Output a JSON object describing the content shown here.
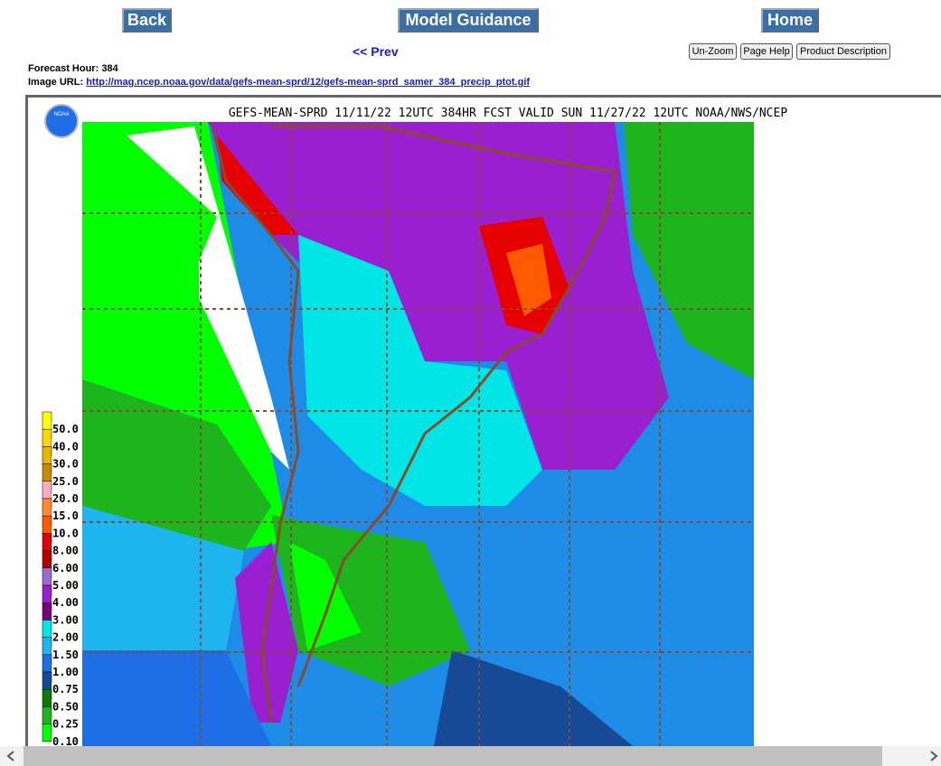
{
  "nav": {
    "back": "Back",
    "model_guidance": "Model Guidance",
    "home": "Home"
  },
  "prev": "<< Prev",
  "buttons": [
    "Un-Zoom",
    "Page Help",
    "Product Description"
  ],
  "forecast_hour": {
    "label": "Forecast Hour:",
    "value": "384"
  },
  "image_url": {
    "label": "Image URL:",
    "value": "http://mag.ncep.noaa.gov/data/gefs-mean-sprd/12/gefs-mean-sprd_samer_384_precip_ptot.gif"
  },
  "map": {
    "title": "GEFS-MEAN-SPRD 11/11/22 12UTC 384HR FCST VALID SUN 11/27/22 12UTC NOAA/NWS/NCEP",
    "logo": "NOAA",
    "legend": [
      {
        "label": "50.0",
        "color": "#ffff00"
      },
      {
        "label": "40.0",
        "color": "#ffd700"
      },
      {
        "label": "30.0",
        "color": "#e6b800"
      },
      {
        "label": "25.0",
        "color": "#cc8a00"
      },
      {
        "label": "20.0",
        "color": "#ffaac0"
      },
      {
        "label": "15.0",
        "color": "#ff8a30"
      },
      {
        "label": "10.0",
        "color": "#ff5a00"
      },
      {
        "label": "8.00",
        "color": "#e60000"
      },
      {
        "label": "6.00",
        "color": "#b40000"
      },
      {
        "label": "5.00",
        "color": "#9a6ad8"
      },
      {
        "label": "4.00",
        "color": "#9a1fd0"
      },
      {
        "label": "3.00",
        "color": "#7a007a"
      },
      {
        "label": "2.00",
        "color": "#00e6e6"
      },
      {
        "label": "1.50",
        "color": "#1eb4f0"
      },
      {
        "label": "1.00",
        "color": "#1e6ee6"
      },
      {
        "label": "0.75",
        "color": "#164a96"
      },
      {
        "label": "0.50",
        "color": "#0a780a"
      },
      {
        "label": "0.25",
        "color": "#1eb41e"
      },
      {
        "label": "0.10",
        "color": "#00ff00"
      }
    ]
  }
}
